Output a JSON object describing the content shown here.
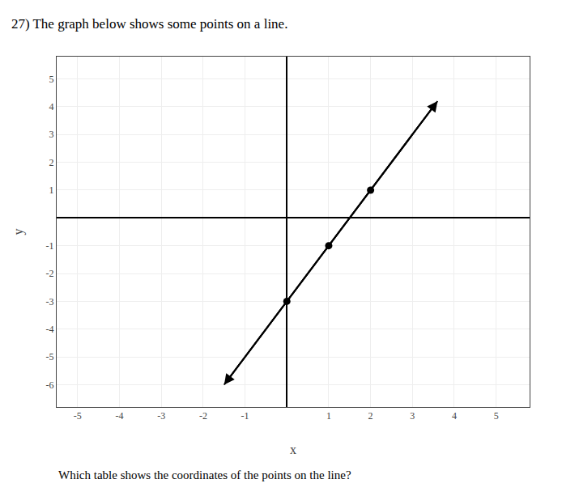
{
  "chart_data": {
    "type": "scatter",
    "title": "27) The graph below shows some points on a line.",
    "subtitle": "Which table shows the coordinates of the points on the line?",
    "x_label": "x",
    "y_label": "y",
    "xlim": [
      -5.5,
      5.8
    ],
    "ylim": [
      -6.8,
      5.8
    ],
    "xticks": [
      -5,
      -4,
      -3,
      -2,
      -1,
      1,
      2,
      3,
      4,
      5
    ],
    "yticks": [
      -6,
      -5,
      -4,
      -3,
      -2,
      -1,
      1,
      2,
      3,
      4,
      5
    ],
    "grid": true,
    "series": [
      {
        "type": "line",
        "marker": "arrow",
        "color": "#000000",
        "x": [
          -1.5,
          3.6
        ],
        "values": [
          -6,
          4.2
        ]
      },
      {
        "type": "scatter",
        "marker": "circle",
        "color": "#000000",
        "x": [
          0,
          1,
          2
        ],
        "values": [
          -3,
          -1,
          1
        ]
      }
    ]
  }
}
